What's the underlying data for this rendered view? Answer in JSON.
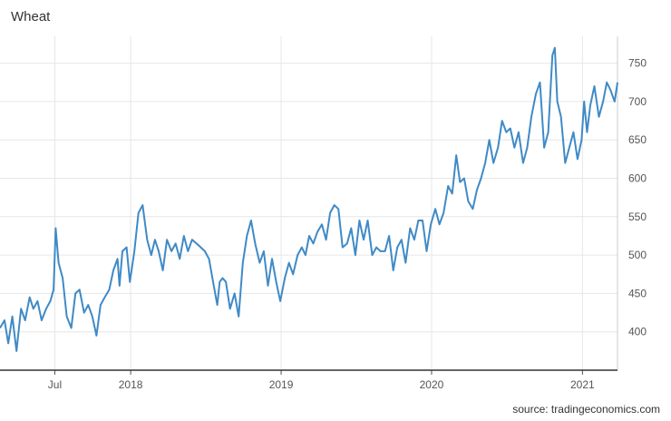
{
  "header": {
    "title": "Wheat"
  },
  "footer": {
    "source": "source: tradingeconomics.com"
  },
  "chart_data": {
    "type": "line",
    "title": "Wheat",
    "xlabel": "",
    "ylabel": "",
    "ylim": [
      350,
      785
    ],
    "yticks": [
      400,
      450,
      500,
      550,
      600,
      650,
      700,
      750
    ],
    "x_range": [
      "2017-02-18",
      "2021-03-27"
    ],
    "x_ticks": [
      {
        "date": "2017-07-01",
        "label": "Jul"
      },
      {
        "date": "2018-01-01",
        "label": "2018"
      },
      {
        "date": "2019-01-01",
        "label": "2019"
      },
      {
        "date": "2020-01-01",
        "label": "2020"
      },
      {
        "date": "2021-01-01",
        "label": "2021"
      }
    ],
    "grid": true,
    "y_axis_side": "right",
    "color": "#3f8ac6",
    "series": [
      {
        "x": [
          "2017-02-18",
          "2017-03-01",
          "2017-03-10",
          "2017-03-20",
          "2017-03-30",
          "2017-04-10",
          "2017-04-20",
          "2017-05-01",
          "2017-05-10",
          "2017-05-20",
          "2017-05-30",
          "2017-06-10",
          "2017-06-20",
          "2017-06-28",
          "2017-07-03",
          "2017-07-10",
          "2017-07-20",
          "2017-07-30",
          "2017-08-10",
          "2017-08-20",
          "2017-08-30",
          "2017-09-10",
          "2017-09-20",
          "2017-09-30",
          "2017-10-10",
          "2017-10-20",
          "2017-10-30",
          "2017-11-10",
          "2017-11-20",
          "2017-11-30",
          "2017-12-05",
          "2017-12-12",
          "2017-12-22",
          "2017-12-30",
          "2018-01-10",
          "2018-01-20",
          "2018-01-30",
          "2018-02-10",
          "2018-02-20",
          "2018-03-01",
          "2018-03-10",
          "2018-03-20",
          "2018-03-30",
          "2018-04-10",
          "2018-04-20",
          "2018-04-30",
          "2018-05-10",
          "2018-05-20",
          "2018-05-30",
          "2018-06-10",
          "2018-06-20",
          "2018-06-30",
          "2018-07-10",
          "2018-07-20",
          "2018-07-30",
          "2018-08-05",
          "2018-08-12",
          "2018-08-20",
          "2018-08-30",
          "2018-09-10",
          "2018-09-20",
          "2018-09-30",
          "2018-10-10",
          "2018-10-20",
          "2018-10-30",
          "2018-11-10",
          "2018-11-20",
          "2018-11-30",
          "2018-12-10",
          "2018-12-20",
          "2018-12-30",
          "2019-01-10",
          "2019-01-20",
          "2019-01-30",
          "2019-02-10",
          "2019-02-20",
          "2019-03-01",
          "2019-03-10",
          "2019-03-20",
          "2019-03-30",
          "2019-04-10",
          "2019-04-20",
          "2019-04-30",
          "2019-05-10",
          "2019-05-20",
          "2019-05-30",
          "2019-06-10",
          "2019-06-20",
          "2019-06-30",
          "2019-07-10",
          "2019-07-20",
          "2019-07-30",
          "2019-08-10",
          "2019-08-20",
          "2019-08-30",
          "2019-09-10",
          "2019-09-20",
          "2019-09-30",
          "2019-10-10",
          "2019-10-20",
          "2019-10-30",
          "2019-11-10",
          "2019-11-20",
          "2019-11-30",
          "2019-12-10",
          "2019-12-20",
          "2019-12-30",
          "2020-01-10",
          "2020-01-20",
          "2020-01-30",
          "2020-02-10",
          "2020-02-20",
          "2020-03-01",
          "2020-03-10",
          "2020-03-20",
          "2020-03-30",
          "2020-04-10",
          "2020-04-20",
          "2020-04-30",
          "2020-05-10",
          "2020-05-20",
          "2020-05-30",
          "2020-06-10",
          "2020-06-20",
          "2020-06-30",
          "2020-07-10",
          "2020-07-20",
          "2020-07-30",
          "2020-08-10",
          "2020-08-20",
          "2020-08-30",
          "2020-09-10",
          "2020-09-20",
          "2020-09-30",
          "2020-10-10",
          "2020-10-20",
          "2020-10-26",
          "2020-11-01",
          "2020-11-10",
          "2020-11-20",
          "2020-11-30",
          "2020-12-10",
          "2020-12-20",
          "2020-12-30",
          "2021-01-05",
          "2021-01-12",
          "2021-01-20",
          "2021-01-30",
          "2021-02-10",
          "2021-02-20",
          "2021-03-01",
          "2021-03-10",
          "2021-03-20",
          "2021-03-27"
        ],
        "y": [
          405,
          415,
          385,
          420,
          375,
          430,
          415,
          445,
          430,
          440,
          415,
          430,
          440,
          455,
          535,
          490,
          470,
          420,
          405,
          450,
          455,
          425,
          435,
          420,
          395,
          435,
          445,
          455,
          480,
          495,
          460,
          505,
          510,
          465,
          505,
          555,
          565,
          520,
          500,
          520,
          505,
          480,
          520,
          505,
          515,
          495,
          525,
          505,
          520,
          515,
          510,
          505,
          495,
          465,
          435,
          465,
          470,
          465,
          430,
          450,
          420,
          490,
          525,
          545,
          515,
          490,
          505,
          460,
          495,
          465,
          440,
          470,
          490,
          475,
          500,
          510,
          500,
          525,
          515,
          530,
          540,
          520,
          555,
          565,
          560,
          510,
          515,
          535,
          500,
          545,
          520,
          545,
          500,
          510,
          505,
          505,
          525,
          480,
          510,
          520,
          490,
          535,
          520,
          545,
          545,
          505,
          540,
          560,
          540,
          555,
          590,
          580,
          630,
          595,
          600,
          570,
          560,
          585,
          600,
          620,
          650,
          620,
          640,
          675,
          660,
          665,
          640,
          660,
          620,
          640,
          680,
          710,
          725,
          640,
          660,
          760,
          770,
          700,
          680,
          620,
          640,
          660,
          625,
          650,
          700,
          660,
          695,
          720,
          680,
          700,
          725,
          715,
          700,
          725
        ]
      }
    ]
  }
}
